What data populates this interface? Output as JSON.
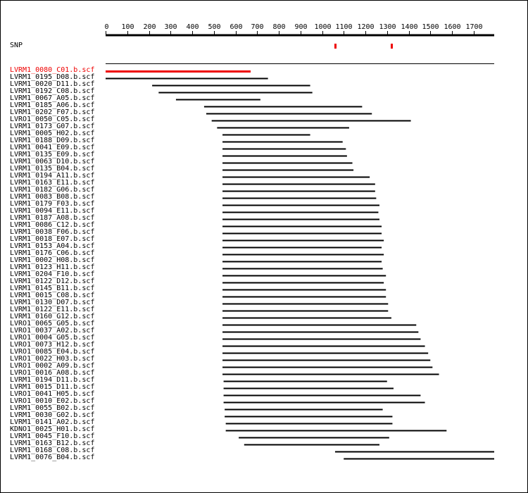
{
  "snp_track_label": "SNP",
  "colors": {
    "highlight": "#ee0000",
    "line": "#000000"
  },
  "chart_data": {
    "type": "alignment",
    "axis": {
      "min": 0,
      "max": 1800,
      "ticks": [
        0,
        100,
        200,
        300,
        400,
        500,
        600,
        700,
        800,
        900,
        1000,
        1100,
        1200,
        1300,
        1400,
        1500,
        1600,
        1700
      ]
    },
    "snp_positions": [
      1060,
      1320
    ],
    "reads": [
      {
        "name": "LVRM1_0080_C01.b.scf",
        "start": 0,
        "end": 670,
        "highlight": true
      },
      {
        "name": "LVRM1_0195_D08.b.scf",
        "start": 0,
        "end": 750
      },
      {
        "name": "LVRM1_0020_D11.b.scf",
        "start": 215,
        "end": 945
      },
      {
        "name": "LVRM1_0192_C08.b.scf",
        "start": 245,
        "end": 955
      },
      {
        "name": "LVRM1_0067_A05.b.scf",
        "start": 325,
        "end": 715
      },
      {
        "name": "LVRM1_0185_A06.b.scf",
        "start": 455,
        "end": 1185
      },
      {
        "name": "LVRM1_0202_F07.b.scf",
        "start": 465,
        "end": 1230
      },
      {
        "name": "LVRO1_0050_C05.b.scf",
        "start": 490,
        "end": 1410
      },
      {
        "name": "LVRM1_0173_G07.b.scf",
        "start": 515,
        "end": 1125
      },
      {
        "name": "LVRM1_0005_H02.b.scf",
        "start": 540,
        "end": 945
      },
      {
        "name": "LVRM1_0188_D09.b.scf",
        "start": 540,
        "end": 1095
      },
      {
        "name": "LVRM1_0041_E09.b.scf",
        "start": 540,
        "end": 1110
      },
      {
        "name": "LVRM1_0135_E09.b.scf",
        "start": 540,
        "end": 1115
      },
      {
        "name": "LVRM1_0063_D10.b.scf",
        "start": 540,
        "end": 1140
      },
      {
        "name": "LVRM1_0135_B04.b.scf",
        "start": 540,
        "end": 1145
      },
      {
        "name": "LVRM1_0194_A11.b.scf",
        "start": 540,
        "end": 1220
      },
      {
        "name": "LVRM1_0163_E11.b.scf",
        "start": 540,
        "end": 1245
      },
      {
        "name": "LVRM1_0182_G06.b.scf",
        "start": 540,
        "end": 1245
      },
      {
        "name": "LVRM1_0083_B08.b.scf",
        "start": 540,
        "end": 1250
      },
      {
        "name": "LVRM1_0179_F03.b.scf",
        "start": 540,
        "end": 1265
      },
      {
        "name": "LVRM1_0094_E11.b.scf",
        "start": 540,
        "end": 1260
      },
      {
        "name": "LVRM1_0187_A08.b.scf",
        "start": 540,
        "end": 1265
      },
      {
        "name": "LVRM1_0086_C12.b.scf",
        "start": 540,
        "end": 1275
      },
      {
        "name": "LVRM1_0038_F06.b.scf",
        "start": 540,
        "end": 1275
      },
      {
        "name": "LVRM1_0018_E07.b.scf",
        "start": 540,
        "end": 1285
      },
      {
        "name": "LVRM1_0153_A04.b.scf",
        "start": 540,
        "end": 1275
      },
      {
        "name": "LVRM1_0176_C06.b.scf",
        "start": 540,
        "end": 1285
      },
      {
        "name": "LVRM1_0002_H08.b.scf",
        "start": 540,
        "end": 1275
      },
      {
        "name": "LVRM1_0123_H11.b.scf",
        "start": 540,
        "end": 1280
      },
      {
        "name": "LVRM1_0204_F10.b.scf",
        "start": 540,
        "end": 1295
      },
      {
        "name": "LVRM1_0122_D12.b.scf",
        "start": 540,
        "end": 1285
      },
      {
        "name": "LVRM1_0145_B11.b.scf",
        "start": 540,
        "end": 1295
      },
      {
        "name": "LVRM1_0015_C08.b.scf",
        "start": 540,
        "end": 1295
      },
      {
        "name": "LVRM1_0130_D07.b.scf",
        "start": 540,
        "end": 1305
      },
      {
        "name": "LVRM1_0122_E11.b.scf",
        "start": 540,
        "end": 1305
      },
      {
        "name": "LVRM1_0160_G12.b.scf",
        "start": 540,
        "end": 1320
      },
      {
        "name": "LVRO1_0065_G05.b.scf",
        "start": 540,
        "end": 1435
      },
      {
        "name": "LVRO1_0037_A02.b.scf",
        "start": 540,
        "end": 1445
      },
      {
        "name": "LVRO1_0004_G05.b.scf",
        "start": 540,
        "end": 1455
      },
      {
        "name": "LVRO1_0073_H12.b.scf",
        "start": 540,
        "end": 1475
      },
      {
        "name": "LVRO1_0085_E04.b.scf",
        "start": 540,
        "end": 1490
      },
      {
        "name": "LVRO1_0022_H03.b.scf",
        "start": 540,
        "end": 1500
      },
      {
        "name": "LVRO1_0002_A09.b.scf",
        "start": 540,
        "end": 1510
      },
      {
        "name": "LVRO1_0016_A08.b.scf",
        "start": 540,
        "end": 1540
      },
      {
        "name": "LVRM1_0194_D11.b.scf",
        "start": 545,
        "end": 1300
      },
      {
        "name": "LVRM1_0015_D11.b.scf",
        "start": 545,
        "end": 1330
      },
      {
        "name": "LVRO1_0041_H05.b.scf",
        "start": 545,
        "end": 1455
      },
      {
        "name": "LVRO1_0010_E02.b.scf",
        "start": 545,
        "end": 1475
      },
      {
        "name": "LVRM1_0055_B02.b.scf",
        "start": 550,
        "end": 1280
      },
      {
        "name": "LVRM1_0030_G02.b.scf",
        "start": 550,
        "end": 1325
      },
      {
        "name": "LVRM1_0141_A02.b.scf",
        "start": 555,
        "end": 1325
      },
      {
        "name": "KDNO1_0025_H01.b.scf",
        "start": 555,
        "end": 1575
      },
      {
        "name": "LVRM1_0045_F10.b.scf",
        "start": 615,
        "end": 1310
      },
      {
        "name": "LVRM1_0163_B12.b.scf",
        "start": 640,
        "end": 1265
      },
      {
        "name": "LVRM1_0168_C08.b.scf",
        "start": 1060,
        "end": 1800
      },
      {
        "name": "LVRM1_0076_B04.b.scf",
        "start": 1100,
        "end": 1800
      }
    ]
  }
}
